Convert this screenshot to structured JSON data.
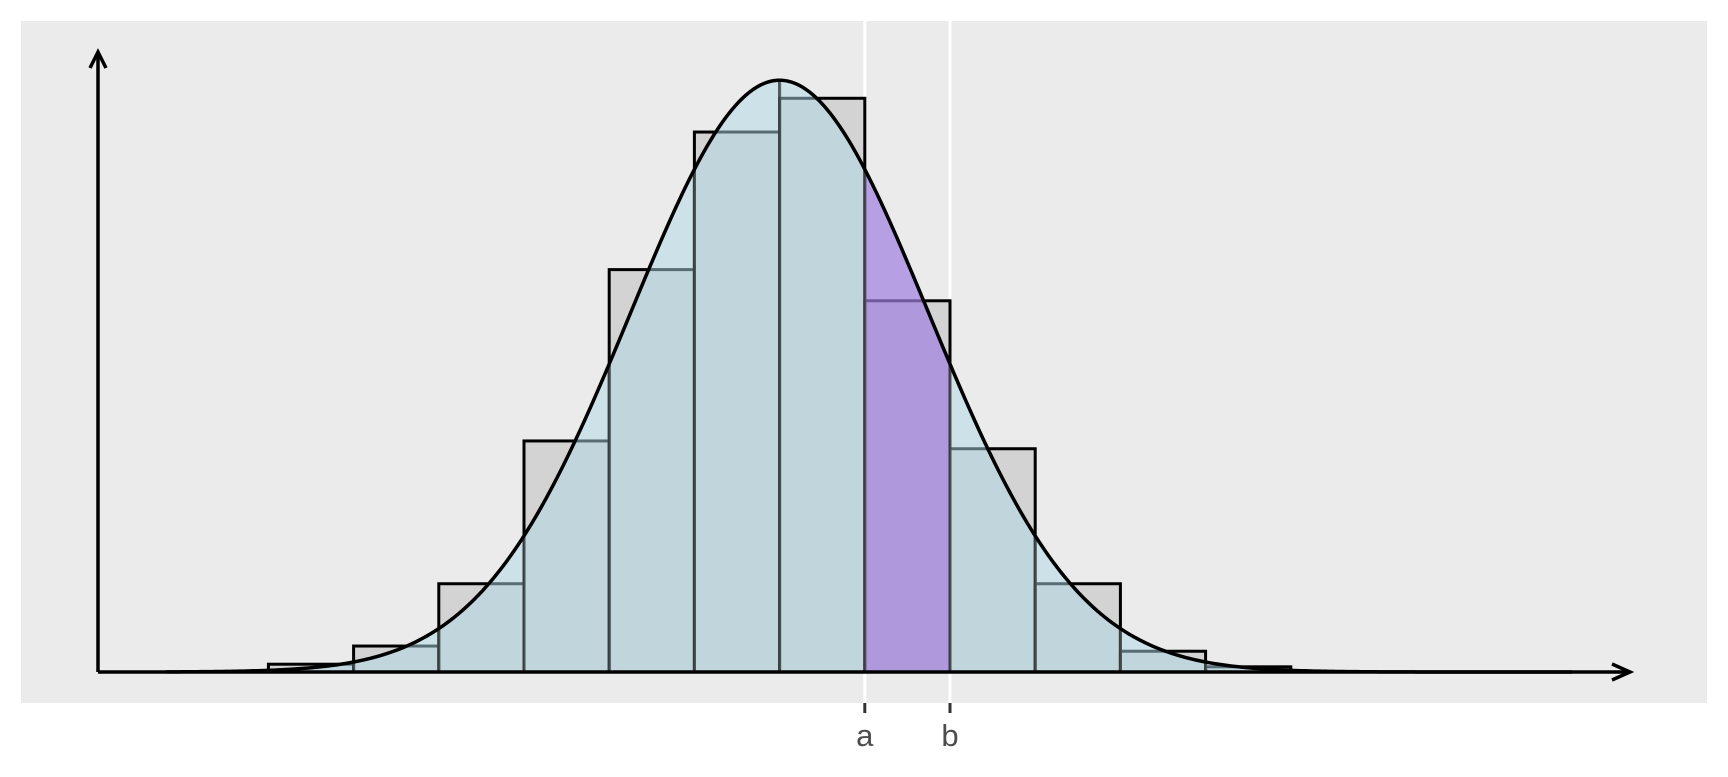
{
  "chart_data": {
    "type": "bar",
    "description_note": "",
    "bins": [
      {
        "left": -6,
        "right": -5,
        "value": 0.003
      },
      {
        "left": -5,
        "right": -4,
        "value": 0.01
      },
      {
        "left": -4,
        "right": -3,
        "value": 0.034
      },
      {
        "left": -3,
        "right": -2,
        "value": 0.089
      },
      {
        "left": -2,
        "right": -1,
        "value": 0.155
      },
      {
        "left": -1,
        "right": 0,
        "value": 0.208
      },
      {
        "left": 0,
        "right": 1,
        "value": 0.221
      },
      {
        "left": 1,
        "right": 2,
        "value": 0.143
      },
      {
        "left": 2,
        "right": 3,
        "value": 0.086
      },
      {
        "left": 3,
        "right": 4,
        "value": 0.034
      },
      {
        "left": 4,
        "right": 5,
        "value": 0.008
      },
      {
        "left": 5,
        "right": 6,
        "value": 0.002
      }
    ],
    "curve": {
      "type": "normal-density",
      "mean": 0,
      "sd": 1.75
    },
    "highlight": {
      "from": 1,
      "to": 2
    },
    "x_ticks": [
      {
        "value": 1,
        "label": "a"
      },
      {
        "value": 2,
        "label": "b"
      }
    ],
    "xlim": [
      -8,
      10
    ],
    "ylim": [
      0,
      0.235
    ],
    "title": "",
    "xlabel": "",
    "ylabel": "",
    "grid": false,
    "legend": "none",
    "colors": {
      "panel": "#ebebeb",
      "bar_fill": "#d3d3d3",
      "bar_stroke": "#000000",
      "area_fill": "#add8e6",
      "highlight_fill": "#a080e0",
      "curve": "#000000",
      "vline": "#ffffff"
    }
  }
}
